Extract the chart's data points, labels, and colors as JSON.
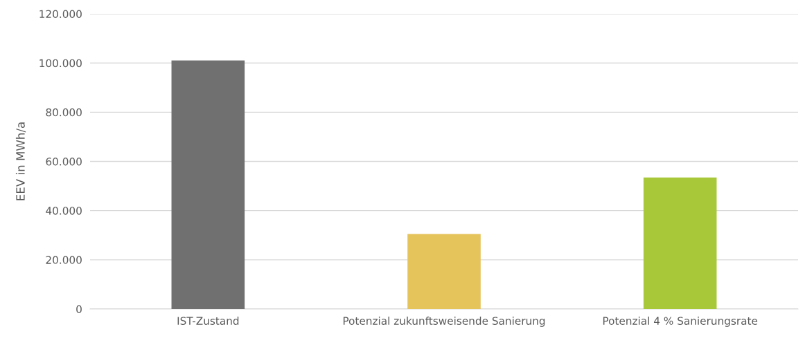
{
  "chart_data": {
    "type": "bar",
    "ylabel": "EEV in MWh/a",
    "categories": [
      "IST-Zustand",
      "Potenzial zukunftsweisende Sanierung",
      "Potenzial 4 % Sanierungsrate"
    ],
    "values": [
      101000,
      30500,
      53500
    ],
    "colors": [
      "#707070",
      "#e6c45c",
      "#a8c83a"
    ],
    "ylim": [
      0,
      120000
    ],
    "yticks": [
      {
        "value": 0,
        "label": "0"
      },
      {
        "value": 20000,
        "label": "20.000"
      },
      {
        "value": 40000,
        "label": "40.000"
      },
      {
        "value": 60000,
        "label": "60.000"
      },
      {
        "value": 80000,
        "label": "80.000"
      },
      {
        "value": 100000,
        "label": "100.000"
      },
      {
        "value": 120000,
        "label": "120.000"
      }
    ],
    "grid": "y"
  }
}
